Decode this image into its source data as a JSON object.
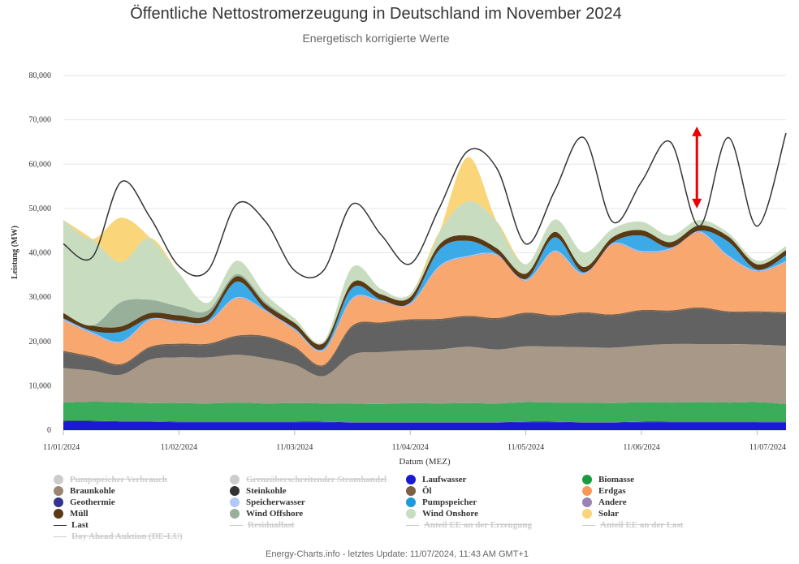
{
  "title": "Öffentliche Nettostromerzeugung in Deutschland im November 2024",
  "subtitle": "Energetisch korrigierte Werte",
  "footer": "Energy-Charts.info - letztes Update: 11/07/2024, 11:43 AM GMT+1",
  "chart_data": {
    "type": "area",
    "xlabel": "Datum (MEZ)",
    "ylabel": "Leistung (MW)",
    "ylim": [
      0,
      80000
    ],
    "yticks": [
      "0",
      "10,000",
      "20,000",
      "30,000",
      "40,000",
      "50,000",
      "60,000",
      "70,000",
      "80,000"
    ],
    "xticks": [
      "11/01/2024",
      "11/02/2024",
      "11/03/2024",
      "11/04/2024",
      "11/05/2024",
      "11/06/2024",
      "11/07/2024"
    ],
    "grid": true,
    "legend_position": "bottom",
    "x_hours": [
      0,
      6,
      12,
      18,
      24,
      30,
      36,
      42,
      48,
      54,
      60,
      66,
      72,
      78,
      84,
      90,
      96,
      102,
      108,
      114,
      120,
      126,
      132,
      138,
      144,
      150
    ],
    "series": [
      {
        "name": "Laufwasser",
        "color": "#1a1ad2",
        "values": [
          2000,
          2000,
          1900,
          1900,
          1800,
          1800,
          1800,
          1800,
          1800,
          1800,
          1700,
          1700,
          1700,
          1700,
          1700,
          1700,
          1800,
          1800,
          1700,
          1700,
          1800,
          1800,
          1800,
          1800,
          1800,
          1800
        ]
      },
      {
        "name": "Geothermie",
        "color": "#34348f",
        "values": [
          100,
          100,
          100,
          100,
          100,
          100,
          100,
          100,
          100,
          100,
          100,
          100,
          100,
          100,
          100,
          100,
          100,
          100,
          100,
          100,
          100,
          100,
          100,
          100,
          100,
          100
        ]
      },
      {
        "name": "Biomasse",
        "color": "#3aac5a",
        "values": [
          4100,
          4300,
          4300,
          4100,
          4200,
          4100,
          4300,
          4100,
          4200,
          4100,
          4200,
          4100,
          4300,
          4200,
          4300,
          4200,
          4400,
          4300,
          4400,
          4300,
          4400,
          4300,
          4400,
          4300,
          4400,
          4000
        ]
      },
      {
        "name": "Braunkohle",
        "color": "#a89888",
        "values": [
          7800,
          7000,
          6200,
          9800,
          10300,
          10400,
          10800,
          10200,
          8700,
          6200,
          11000,
          11700,
          11900,
          12200,
          12700,
          12200,
          12600,
          12600,
          12500,
          12500,
          12800,
          13200,
          13100,
          13200,
          13000,
          13100
        ]
      },
      {
        "name": "Steinkohle",
        "color": "#626262",
        "values": [
          3600,
          2900,
          2100,
          2600,
          2800,
          2800,
          4000,
          4700,
          3700,
          2200,
          6300,
          6400,
          6700,
          6600,
          6700,
          6800,
          7300,
          6800,
          7600,
          7200,
          7700,
          7300,
          8000,
          7100,
          7200,
          7300
        ]
      },
      {
        "name": "Öl",
        "color": "#7a6045",
        "values": [
          300,
          300,
          300,
          300,
          300,
          300,
          300,
          300,
          300,
          300,
          300,
          300,
          300,
          300,
          300,
          300,
          300,
          300,
          300,
          300,
          300,
          300,
          300,
          300,
          300,
          300
        ]
      },
      {
        "name": "Erdgas",
        "color": "#f8a86e",
        "values": [
          6800,
          5100,
          4800,
          5900,
          4700,
          4700,
          8400,
          5500,
          3700,
          3100,
          5900,
          4600,
          3300,
          11600,
          13200,
          14000,
          7100,
          14300,
          8500,
          15700,
          13000,
          13700,
          16800,
          12300,
          8900,
          11200
        ]
      },
      {
        "name": "Andere",
        "color": "#9a82b4",
        "values": [
          100,
          100,
          100,
          100,
          100,
          100,
          100,
          100,
          100,
          100,
          100,
          100,
          100,
          100,
          100,
          100,
          100,
          100,
          100,
          100,
          100,
          100,
          100,
          100,
          100,
          100
        ]
      },
      {
        "name": "Speicherwasser",
        "color": "#b4c8f5",
        "values": [
          200,
          200,
          200,
          200,
          200,
          200,
          200,
          200,
          200,
          200,
          200,
          200,
          200,
          200,
          200,
          200,
          200,
          200,
          200,
          200,
          200,
          200,
          200,
          200,
          200,
          200
        ]
      },
      {
        "name": "Pumpspeicher",
        "color": "#3caae6",
        "values": [
          200,
          400,
          2200,
          200,
          200,
          300,
          3500,
          200,
          200,
          300,
          2300,
          200,
          200,
          3600,
          3400,
          200,
          200,
          3000,
          200,
          200,
          3500,
          200,
          200,
          3100,
          200,
          1300
        ]
      },
      {
        "name": "Müll",
        "color": "#5a3a14",
        "values": [
          1200,
          1200,
          1200,
          1200,
          1200,
          1200,
          1200,
          1200,
          1200,
          1200,
          1200,
          1200,
          1200,
          1200,
          1200,
          1200,
          1200,
          1200,
          1200,
          1200,
          1200,
          1200,
          1200,
          1200,
          1200,
          1200
        ]
      },
      {
        "name": "Wind Offshore",
        "color": "#98b09a",
        "values": [
          0,
          0,
          5500,
          3000,
          2000,
          1000,
          500,
          500,
          0,
          0,
          0,
          0,
          0,
          0,
          0,
          0,
          0,
          0,
          0,
          0,
          0,
          0,
          0,
          0,
          0,
          0
        ]
      },
      {
        "name": "Wind Onshore",
        "color": "#c8dcc0",
        "values": [
          21000,
          19500,
          9000,
          14000,
          7500,
          1700,
          3000,
          1700,
          1000,
          400,
          3500,
          1200,
          700,
          2800,
          7700,
          6000,
          2100,
          2800,
          3300,
          1900,
          1900,
          1500,
          1200,
          800,
          800,
          900
        ]
      },
      {
        "name": "Solar",
        "color": "#fad57a",
        "values": [
          0,
          0,
          10000,
          0,
          0,
          0,
          0,
          0,
          0,
          0,
          0,
          0,
          0,
          0,
          10000,
          0,
          0,
          0,
          0,
          0,
          0,
          0,
          0,
          0,
          0,
          0
        ]
      },
      {
        "name": "Last",
        "color": "#333333",
        "type": "line",
        "values": [
          42000,
          39000,
          56000,
          48000,
          37000,
          36000,
          51000,
          47000,
          36000,
          36000,
          51000,
          44000,
          37500,
          50000,
          63000,
          59000,
          42000,
          54000,
          66000,
          47000,
          56000,
          65000,
          46000,
          66000,
          46000,
          67000
        ]
      }
    ]
  },
  "legend": [
    {
      "label": "Pumpspeicher Verbrauch",
      "color": "#cccccc",
      "kind": "dot",
      "hidden": true
    },
    {
      "label": "Grenzüberschreitender Stromhandel",
      "color": "#cccccc",
      "kind": "dot",
      "hidden": true
    },
    {
      "label": "Laufwasser",
      "color": "#1a1ad2",
      "kind": "dot",
      "hidden": false
    },
    {
      "label": "Biomasse",
      "color": "#1a9b3e",
      "kind": "dot",
      "hidden": false
    },
    {
      "label": "Braunkohle",
      "color": "#9a8472",
      "kind": "dot",
      "hidden": false
    },
    {
      "label": "Steinkohle",
      "color": "#333333",
      "kind": "dot",
      "hidden": false
    },
    {
      "label": "Öl",
      "color": "#7a6045",
      "kind": "dot",
      "hidden": false
    },
    {
      "label": "Erdgas",
      "color": "#f59a58",
      "kind": "dot",
      "hidden": false
    },
    {
      "label": "Geothermie",
      "color": "#34348f",
      "kind": "dot",
      "hidden": false
    },
    {
      "label": "Speicherwasser",
      "color": "#b4c8f5",
      "kind": "dot",
      "hidden": false
    },
    {
      "label": "Pumpspeicher",
      "color": "#1e9ad8",
      "kind": "dot",
      "hidden": false
    },
    {
      "label": "Andere",
      "color": "#9a82b4",
      "kind": "dot",
      "hidden": false
    },
    {
      "label": "Müll",
      "color": "#5a3a14",
      "kind": "dot",
      "hidden": false
    },
    {
      "label": "Wind Offshore",
      "color": "#98b09a",
      "kind": "dot",
      "hidden": false
    },
    {
      "label": "Wind Onshore",
      "color": "#c8dcc0",
      "kind": "dot",
      "hidden": false
    },
    {
      "label": "Solar",
      "color": "#fad57a",
      "kind": "dot",
      "hidden": false
    },
    {
      "label": "Last",
      "color": "#333333",
      "kind": "line",
      "hidden": false
    },
    {
      "label": "Residuallast",
      "color": "#cccccc",
      "kind": "line",
      "hidden": true
    },
    {
      "label": "Anteil EE an der Erzeugung",
      "color": "#cccccc",
      "kind": "line",
      "hidden": true
    },
    {
      "label": "Anteil EE an der Last",
      "color": "#cccccc",
      "kind": "line",
      "hidden": true
    },
    {
      "label": "Day Ahead Auktion (DE-LU)",
      "color": "#cccccc",
      "kind": "line",
      "hidden": true
    }
  ],
  "annotation_color": "#ee0000"
}
